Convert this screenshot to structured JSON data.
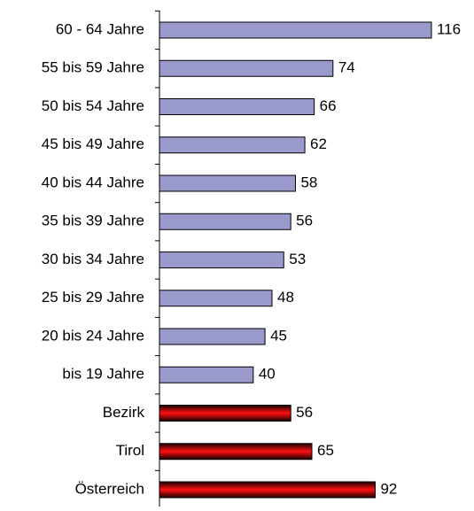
{
  "chart_data": {
    "type": "barh",
    "categories": [
      "60 - 64 Jahre",
      "55 bis 59 Jahre",
      "50 bis 54 Jahre",
      "45 bis 49 Jahre",
      "40 bis 44 Jahre",
      "35 bis 39 Jahre",
      "30 bis 34 Jahre",
      "25 bis 29 Jahre",
      "20 bis 24 Jahre",
      "bis 19 Jahre",
      "Bezirk",
      "Tirol",
      "Österreich"
    ],
    "values": [
      116,
      74,
      66,
      62,
      58,
      56,
      53,
      48,
      45,
      40,
      56,
      65,
      92
    ],
    "fills": [
      "#9999cc",
      "#9999cc",
      "#9999cc",
      "#9999cc",
      "#9999cc",
      "#9999cc",
      "#9999cc",
      "#9999cc",
      "#9999cc",
      "#9999cc",
      {
        "edge": "#1a0000",
        "center": "#ff1010"
      },
      {
        "edge": "#1a0000",
        "center": "#ff1010"
      },
      {
        "edge": "#1a0000",
        "center": "#ff1010"
      }
    ],
    "xlim": [
      0,
      130
    ]
  }
}
